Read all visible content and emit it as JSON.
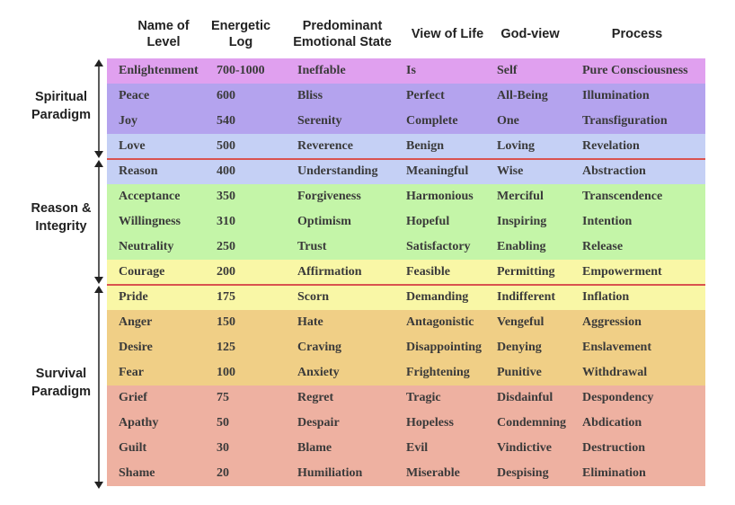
{
  "headers": [
    {
      "line1": "Name of",
      "line2": "Level"
    },
    {
      "line1": "Energetic",
      "line2": "Log"
    },
    {
      "line1": "Predominant",
      "line2": "Emotional State"
    },
    {
      "line1": "View of Life",
      "line2": ""
    },
    {
      "line1": "God-view",
      "line2": ""
    },
    {
      "line1": "Process",
      "line2": ""
    }
  ],
  "paradigms": [
    {
      "line1": "Spiritual",
      "line2": "Paradigm"
    },
    {
      "line1": "Reason &",
      "line2": "Integrity"
    },
    {
      "line1": "Survival",
      "line2": "Paradigm"
    }
  ],
  "rows": [
    {
      "level": "Enlightenment",
      "log": "700-1000",
      "emotion": "Ineffable",
      "view": "Is",
      "god": "Self",
      "process": "Pure Consciousness",
      "color": "#e0a0ef"
    },
    {
      "level": "Peace",
      "log": "600",
      "emotion": "Bliss",
      "view": "Perfect",
      "god": "All-Being",
      "process": "Illumination",
      "color": "#b4a3ee"
    },
    {
      "level": "Joy",
      "log": "540",
      "emotion": "Serenity",
      "view": "Complete",
      "god": "One",
      "process": "Transfiguration",
      "color": "#b4a3ee"
    },
    {
      "level": "Love",
      "log": "500",
      "emotion": "Reverence",
      "view": "Benign",
      "god": "Loving",
      "process": "Revelation",
      "color": "#c5d0f5"
    },
    {
      "level": "Reason",
      "log": "400",
      "emotion": "Understanding",
      "view": "Meaningful",
      "god": "Wise",
      "process": "Abstraction",
      "color": "#c5d0f5"
    },
    {
      "level": "Acceptance",
      "log": "350",
      "emotion": "Forgiveness",
      "view": "Harmonious",
      "god": "Merciful",
      "process": "Transcendence",
      "color": "#c4f5a8"
    },
    {
      "level": "Willingness",
      "log": "310",
      "emotion": "Optimism",
      "view": "Hopeful",
      "god": "Inspiring",
      "process": "Intention",
      "color": "#c4f5a8"
    },
    {
      "level": "Neutrality",
      "log": "250",
      "emotion": "Trust",
      "view": "Satisfactory",
      "god": "Enabling",
      "process": "Release",
      "color": "#c4f5a8"
    },
    {
      "level": "Courage",
      "log": "200",
      "emotion": "Affirmation",
      "view": "Feasible",
      "god": "Permitting",
      "process": "Empowerment",
      "color": "#f9f7a6"
    },
    {
      "level": "Pride",
      "log": "175",
      "emotion": "Scorn",
      "view": "Demanding",
      "god": "Indifferent",
      "process": "Inflation",
      "color": "#f9f7a6"
    },
    {
      "level": "Anger",
      "log": "150",
      "emotion": "Hate",
      "view": "Antagonistic",
      "god": "Vengeful",
      "process": "Aggression",
      "color": "#f0cf86"
    },
    {
      "level": "Desire",
      "log": "125",
      "emotion": "Craving",
      "view": "Disappointing",
      "god": "Denying",
      "process": "Enslavement",
      "color": "#f0cf86"
    },
    {
      "level": "Fear",
      "log": "100",
      "emotion": "Anxiety",
      "view": "Frightening",
      "god": "Punitive",
      "process": "Withdrawal",
      "color": "#f0cf86"
    },
    {
      "level": "Grief",
      "log": "75",
      "emotion": "Regret",
      "view": "Tragic",
      "god": "Disdainful",
      "process": "Despondency",
      "color": "#eeb1a1"
    },
    {
      "level": "Apathy",
      "log": "50",
      "emotion": "Despair",
      "view": "Hopeless",
      "god": "Condemning",
      "process": "Abdication",
      "color": "#eeb1a1"
    },
    {
      "level": "Guilt",
      "log": "30",
      "emotion": "Blame",
      "view": "Evil",
      "god": "Vindictive",
      "process": "Destruction",
      "color": "#eeb1a1"
    },
    {
      "level": "Shame",
      "log": "20",
      "emotion": "Humiliation",
      "view": "Miserable",
      "god": "Despising",
      "process": "Elimination",
      "color": "#eeb1a1"
    }
  ],
  "divider_color": "#d9534f",
  "arrow_color": "#222222"
}
